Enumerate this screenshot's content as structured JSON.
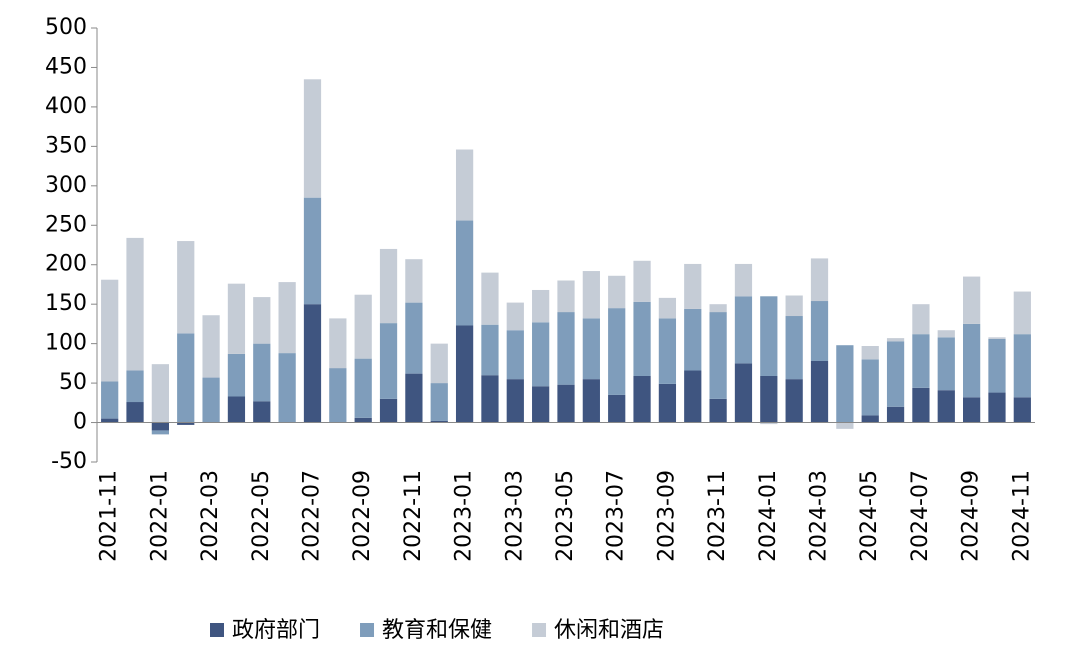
{
  "chart_data": {
    "type": "stacked_bar",
    "categories": [
      "2021-11",
      null,
      "2022-01",
      null,
      "2022-03",
      null,
      "2022-05",
      null,
      "2022-07",
      null,
      "2022-09",
      null,
      "2022-11",
      null,
      "2023-01",
      null,
      "2023-03",
      null,
      "2023-05",
      null,
      "2023-07",
      null,
      "2023-09",
      null,
      "2023-11",
      null,
      "2024-01",
      null,
      "2024-03",
      null,
      "2024-05",
      null,
      "2024-07",
      null,
      "2024-09",
      null,
      "2024-11"
    ],
    "series": [
      {
        "name": "政府部门",
        "color": "#3f5580",
        "values": [
          5,
          26,
          -10,
          -3,
          0,
          33,
          27,
          0,
          150,
          0,
          6,
          30,
          62,
          2,
          123,
          60,
          55,
          46,
          48,
          55,
          35,
          59,
          49,
          66,
          30,
          75,
          59,
          55,
          78,
          0,
          9,
          20,
          44,
          41,
          32,
          38,
          32
        ]
      },
      {
        "name": "教育和保健",
        "color": "#7f9dbb",
        "values": [
          47,
          40,
          -5,
          113,
          57,
          54,
          73,
          88,
          135,
          69,
          75,
          96,
          90,
          48,
          133,
          64,
          62,
          81,
          92,
          77,
          110,
          94,
          83,
          78,
          110,
          85,
          101,
          80,
          76,
          98,
          71,
          83,
          68,
          67,
          93,
          68,
          80
        ]
      },
      {
        "name": "休闲和酒店",
        "color": "#c5ccd6",
        "values": [
          129,
          168,
          74,
          117,
          79,
          89,
          59,
          90,
          150,
          63,
          81,
          94,
          55,
          50,
          90,
          66,
          35,
          41,
          40,
          60,
          41,
          52,
          26,
          57,
          10,
          41,
          -2,
          26,
          54,
          -8,
          17,
          4,
          38,
          9,
          60,
          2,
          54
        ]
      }
    ],
    "ylim": [
      -50,
      500
    ],
    "yticks": [
      -50,
      0,
      50,
      100,
      150,
      200,
      250,
      300,
      350,
      400,
      450,
      500
    ],
    "legend": "bottom"
  }
}
